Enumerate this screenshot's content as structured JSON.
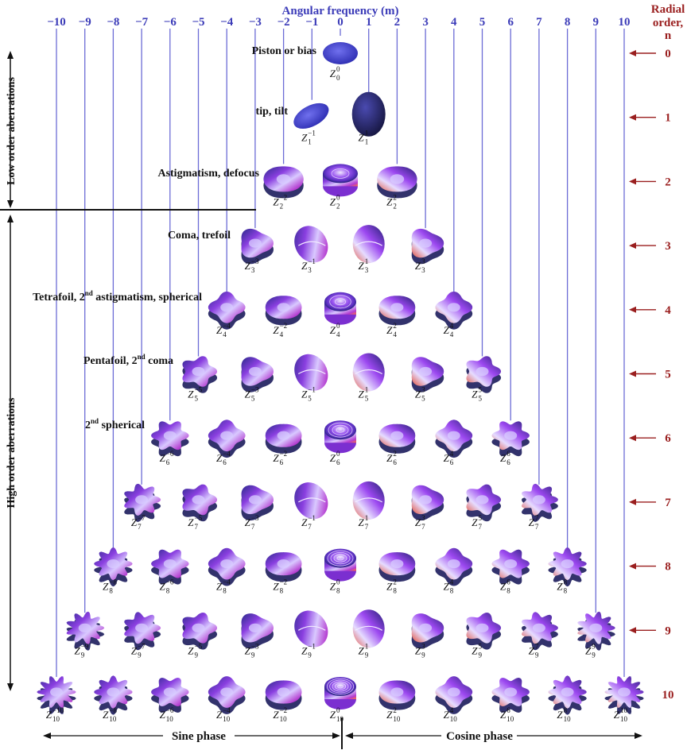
{
  "header": {
    "angular_frequency": "Angular frequency (m)",
    "radial_order_line1": "Radial",
    "radial_order_line2": "order,",
    "radial_order_line3": "n"
  },
  "m_values": [
    -10,
    -9,
    -8,
    -7,
    -6,
    -5,
    -4,
    -3,
    -2,
    -1,
    0,
    1,
    2,
    3,
    4,
    5,
    6,
    7,
    8,
    9,
    10
  ],
  "n_values": [
    0,
    1,
    2,
    3,
    4,
    5,
    6,
    7,
    8,
    9,
    10
  ],
  "side_labels": {
    "low": "Low order aberrations",
    "high": "High order aberrations"
  },
  "group_labels": [
    {
      "n": 0,
      "text": "Piston or bias"
    },
    {
      "n": 1,
      "text": "tip, tilt"
    },
    {
      "n": 2,
      "text": "Astigmatism, defocus"
    },
    {
      "n": 3,
      "text": "Coma, trefoil"
    },
    {
      "n": 4,
      "parts": [
        "Tetrafoil, 2",
        "nd",
        " astigmatism, spherical"
      ]
    },
    {
      "n": 5,
      "parts": [
        "Pentafoil, 2",
        "nd",
        " coma"
      ]
    },
    {
      "n": 6,
      "parts": [
        "2",
        "nd",
        " spherical"
      ]
    }
  ],
  "symbol": "Z",
  "phases": {
    "sine": "Sine phase",
    "cosine": "Cosine phase"
  },
  "colors": {
    "m_label": "#3b3bb8",
    "n_label": "#9a1f1f",
    "column_line": "#6c6cd6",
    "arrow": "#9a1f1f",
    "surface_dark": "#1c1c5c",
    "surface_mid": "#7b2fd0",
    "surface_light": "#c9b8ff",
    "surface_hot": "#ff6a3d"
  }
}
